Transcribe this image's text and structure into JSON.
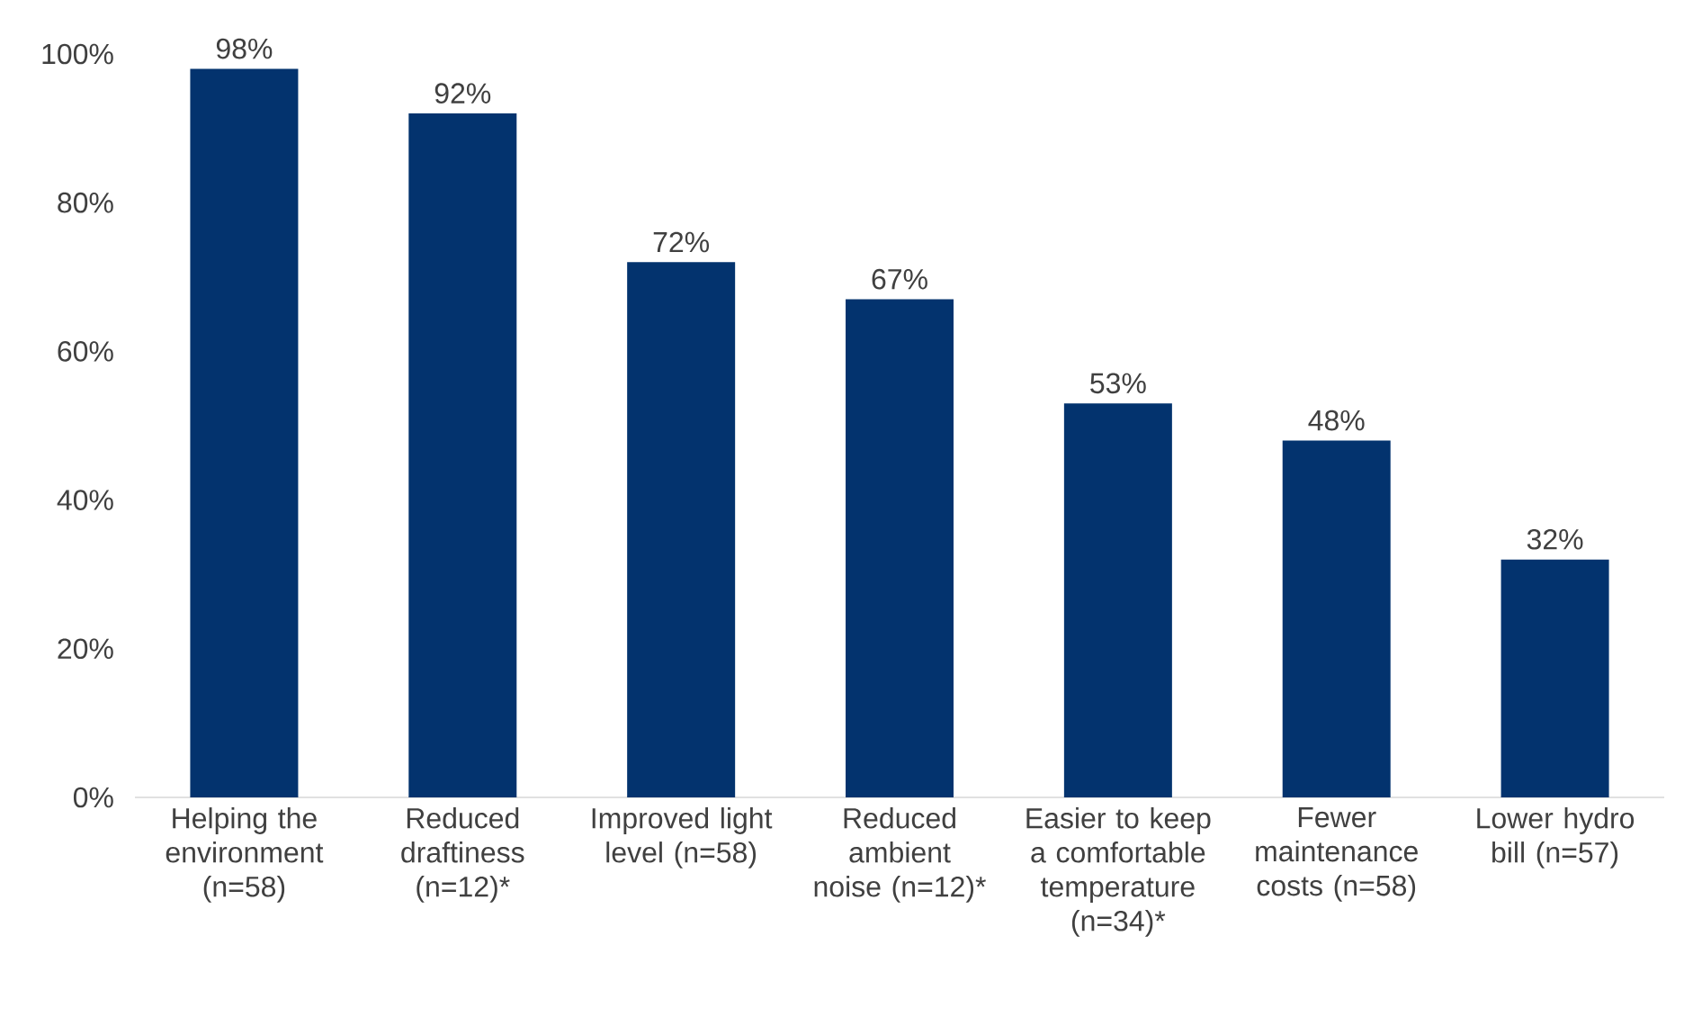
{
  "chart_data": {
    "type": "bar",
    "categories": [
      "Helping the environment (n=58)",
      "Reduced draftiness (n=12)*",
      "Improved light level (n=58)",
      "Reduced ambient noise (n=12)*",
      "Easier to keep a comfortable temperature (n=34)*",
      "Fewer maintenance costs (n=58)",
      "Lower hydro bill (n=57)"
    ],
    "values": [
      98,
      92,
      72,
      67,
      53,
      48,
      32
    ],
    "value_labels": [
      "98%",
      "92%",
      "72%",
      "67%",
      "53%",
      "48%",
      "32%"
    ],
    "color": "#03336e",
    "ylim": [
      0,
      100
    ],
    "yticks": [
      {
        "value": 0,
        "label": "0%"
      },
      {
        "value": 20,
        "label": "20%"
      },
      {
        "value": 40,
        "label": "40%"
      },
      {
        "value": 60,
        "label": "60%"
      },
      {
        "value": 80,
        "label": "80%"
      },
      {
        "value": 100,
        "label": "100%"
      }
    ]
  }
}
